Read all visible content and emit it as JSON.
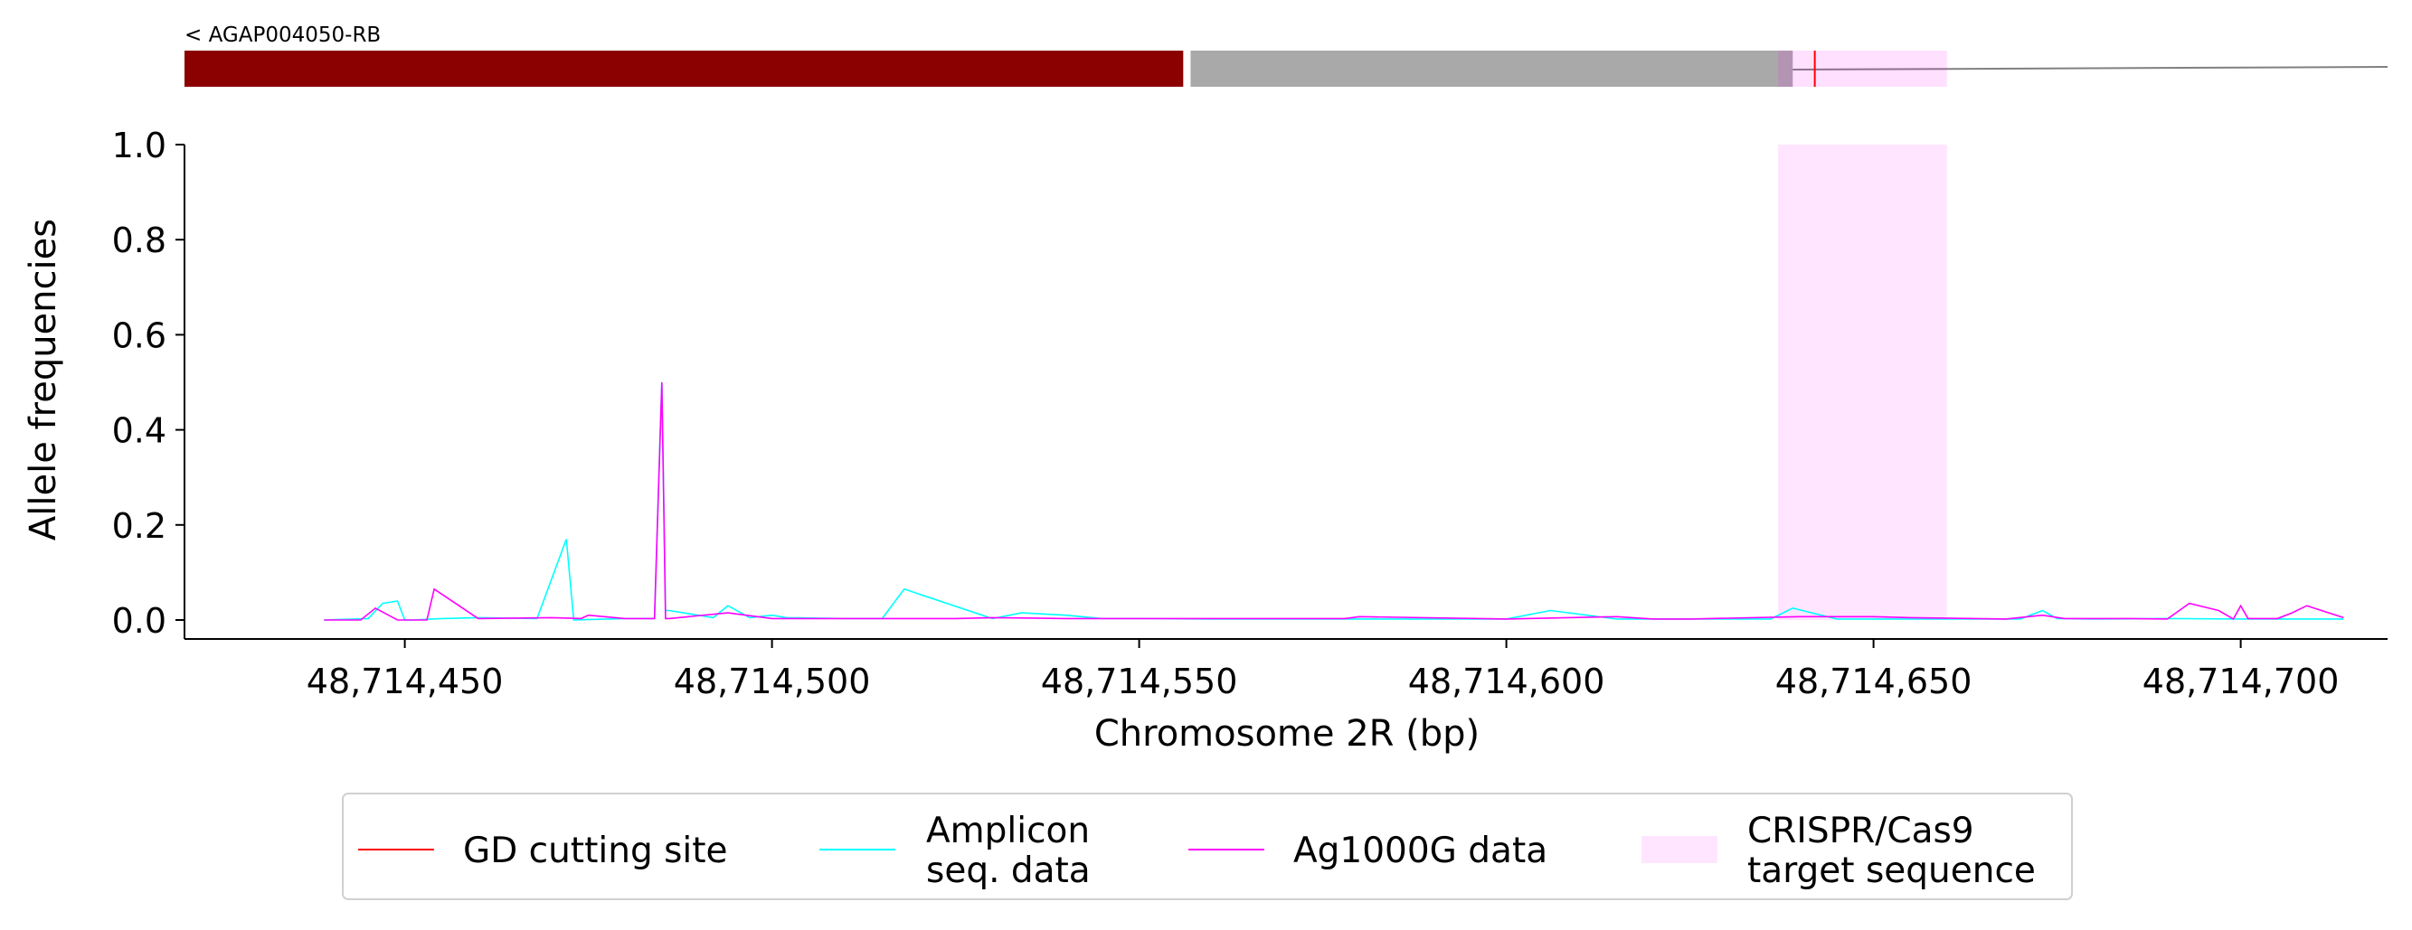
{
  "gene": {
    "label": "< AGAP004050-RB",
    "exon_color": "#8b0000",
    "utr_color": "#a9a9a9",
    "intron_color": "#808080"
  },
  "chart_data": {
    "type": "line",
    "xlabel": "Chromosome 2R (bp)",
    "ylabel": "Allele frequencies",
    "xlim": [
      48714420,
      48714720
    ],
    "ylim": [
      0,
      1.0
    ],
    "x_ticks": [
      48714450,
      48714500,
      48714550,
      48714600,
      48714650,
      48714700
    ],
    "x_tick_labels": [
      "48,714,450",
      "48,714,500",
      "48,714,550",
      "48,714,600",
      "48,714,650",
      "48,714,700"
    ],
    "y_ticks": [
      0.0,
      0.2,
      0.4,
      0.6,
      0.8,
      1.0
    ],
    "y_tick_labels": [
      "0.0",
      "0.2",
      "0.4",
      "0.6",
      "0.8",
      "1.0"
    ],
    "grid": false,
    "legend_position": "bottom-center",
    "gene_model": {
      "exon_range": [
        48714420,
        48714556
      ],
      "utr_range": [
        48714557,
        48714639
      ],
      "intron_range": [
        48714639,
        48714720
      ]
    },
    "target_region": {
      "name": "CRISPR/Cas9 target sequence",
      "range": [
        48714637,
        48714660
      ],
      "color": "#ff00ff"
    },
    "cut_site": {
      "name": "GD cutting site",
      "x": 48714642,
      "color": "#ff0000"
    },
    "series": [
      {
        "name": "Amplicon seq. data",
        "color": "#00ffff",
        "x": [
          48714439,
          48714445,
          48714447,
          48714449,
          48714450,
          48714451,
          48714455,
          48714460,
          48714468,
          48714472,
          48714473,
          48714480,
          48714484,
          48714485,
          48714485.5,
          48714486,
          48714492,
          48714494,
          48714497,
          48714500,
          48714502,
          48714510,
          48714515,
          48714518,
          48714530,
          48714534,
          48714540,
          48714545,
          48714550,
          48714560,
          48714580,
          48714590,
          48714600,
          48714606,
          48714615,
          48714620,
          48714630,
          48714636,
          48714639,
          48714645,
          48714660,
          48714670,
          48714673,
          48714675,
          48714680,
          48714690,
          48714700,
          48714710,
          48714714
        ],
        "values": [
          0.0,
          0.003,
          0.035,
          0.04,
          0.0,
          0.0,
          0.003,
          0.005,
          0.003,
          0.17,
          0.0,
          0.003,
          0.003,
          0.5,
          0.02,
          0.02,
          0.005,
          0.03,
          0.005,
          0.01,
          0.005,
          0.003,
          0.003,
          0.065,
          0.003,
          0.015,
          0.01,
          0.003,
          0.003,
          0.002,
          0.002,
          0.002,
          0.002,
          0.02,
          0.002,
          0.002,
          0.002,
          0.002,
          0.025,
          0.002,
          0.002,
          0.002,
          0.02,
          0.003,
          0.002,
          0.003,
          0.002,
          0.002,
          0.002
        ]
      },
      {
        "name": "Ag1000G data",
        "color": "#ff00ff",
        "x": [
          48714439,
          48714444,
          48714446,
          48714449,
          48714450,
          48714453,
          48714454,
          48714460,
          48714470,
          48714474,
          48714475,
          48714480,
          48714484,
          48714485,
          48714485.5,
          48714486,
          48714494,
          48714500,
          48714515,
          48714525,
          48714530,
          48714540,
          48714560,
          48714578,
          48714580,
          48714600,
          48714615,
          48714620,
          48714625,
          48714640,
          48714650,
          48714655,
          48714668,
          48714673,
          48714676,
          48714685,
          48714690,
          48714693,
          48714697,
          48714699,
          48714700,
          48714701,
          48714705,
          48714707,
          48714709,
          48714714
        ],
        "values": [
          0.0,
          0.0,
          0.025,
          0.0,
          0.0,
          0.0,
          0.065,
          0.003,
          0.005,
          0.003,
          0.01,
          0.003,
          0.003,
          0.5,
          0.003,
          0.003,
          0.015,
          0.003,
          0.003,
          0.003,
          0.005,
          0.003,
          0.003,
          0.003,
          0.007,
          0.002,
          0.007,
          0.002,
          0.002,
          0.007,
          0.007,
          0.005,
          0.002,
          0.01,
          0.003,
          0.003,
          0.002,
          0.035,
          0.02,
          0.002,
          0.03,
          0.003,
          0.003,
          0.015,
          0.03,
          0.005
        ]
      }
    ],
    "legend": [
      {
        "kind": "line",
        "color": "#ff0000",
        "lines": [
          "GD cutting site"
        ]
      },
      {
        "kind": "line",
        "color": "#00ffff",
        "lines": [
          "Amplicon",
          "seq. data"
        ]
      },
      {
        "kind": "line",
        "color": "#ff00ff",
        "lines": [
          "Ag1000G data"
        ]
      },
      {
        "kind": "patch",
        "color": "#ff00ff",
        "lines": [
          "CRISPR/Cas9",
          "target sequence"
        ]
      }
    ]
  }
}
